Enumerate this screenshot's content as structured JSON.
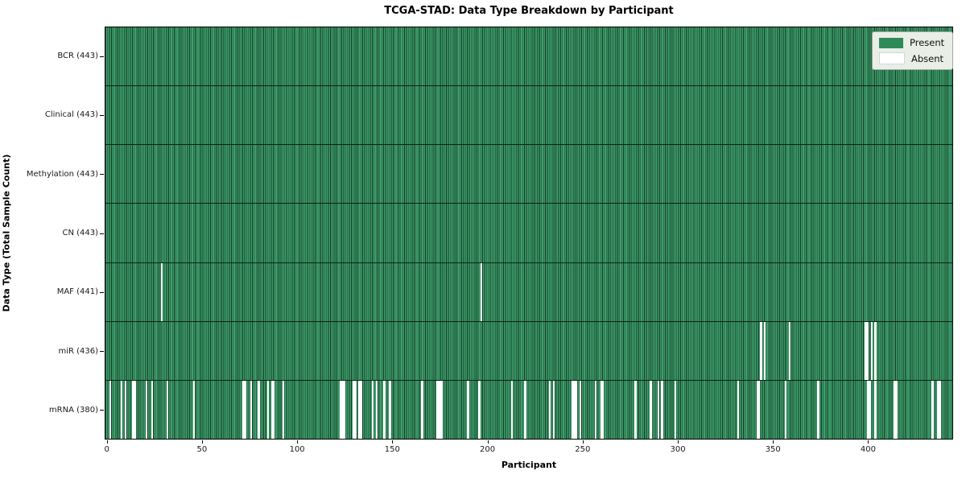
{
  "title": "TCGA-STAD: Data Type Breakdown by Participant",
  "axes": {
    "x_label": "Participant",
    "y_label": "Data Type (Total Sample Count)"
  },
  "legend": {
    "items": [
      {
        "label": "Present",
        "color": "#2e8b57"
      },
      {
        "label": "Absent",
        "color": "#ffffff"
      }
    ]
  },
  "chart_data": {
    "type": "heatmap",
    "title": "TCGA-STAD: Data Type Breakdown by Participant",
    "xlabel": "Participant",
    "ylabel": "Data Type (Total Sample Count)",
    "x_ticks": [
      0,
      50,
      100,
      150,
      200,
      250,
      300,
      350,
      400
    ],
    "xlim": [
      -0.5,
      444
    ],
    "n_participants": 443,
    "grid": false,
    "legend_position": "upper right",
    "legend_entries": [
      "Present",
      "Absent"
    ],
    "colors": {
      "present": "#2e8b57",
      "present_fill": "#3f9e6c",
      "bar_edge": "#123a24",
      "absent": "#ffffff",
      "row_separator": "#0c2315"
    },
    "rows": [
      {
        "name": "BCR",
        "label": "BCR (443)",
        "present_count": 443,
        "absent_count": 0,
        "absent_participants": []
      },
      {
        "name": "Clinical",
        "label": "Clinical (443)",
        "present_count": 443,
        "absent_count": 0,
        "absent_participants": []
      },
      {
        "name": "Methylation",
        "label": "Methylation (443)",
        "present_count": 443,
        "absent_count": 0,
        "absent_participants": []
      },
      {
        "name": "CN",
        "label": "CN (443)",
        "present_count": 443,
        "absent_count": 0,
        "absent_participants": []
      },
      {
        "name": "MAF",
        "label": "MAF (441)",
        "present_count": 441,
        "absent_count": 2,
        "absent_participants": [
          29,
          197
        ]
      },
      {
        "name": "miR",
        "label": "miR (436)",
        "present_count": 436,
        "absent_count": 7,
        "absent_participants": [
          344,
          346,
          359,
          399,
          400,
          402,
          404
        ]
      },
      {
        "name": "mRNA",
        "label": "mRNA (380)",
        "present_count": 380,
        "absent_count": 63,
        "absent_participants": [
          2,
          8,
          10,
          14,
          15,
          21,
          24,
          32,
          46,
          72,
          73,
          76,
          80,
          85,
          87,
          88,
          93,
          123,
          124,
          125,
          130,
          131,
          133,
          134,
          140,
          142,
          146,
          149,
          166,
          174,
          175,
          176,
          190,
          196,
          213,
          220,
          233,
          235,
          245,
          246,
          247,
          249,
          257,
          260,
          261,
          278,
          286,
          290,
          292,
          299,
          332,
          342,
          343,
          357,
          374,
          400,
          401,
          404,
          414,
          415,
          434,
          437,
          438
        ]
      }
    ]
  }
}
